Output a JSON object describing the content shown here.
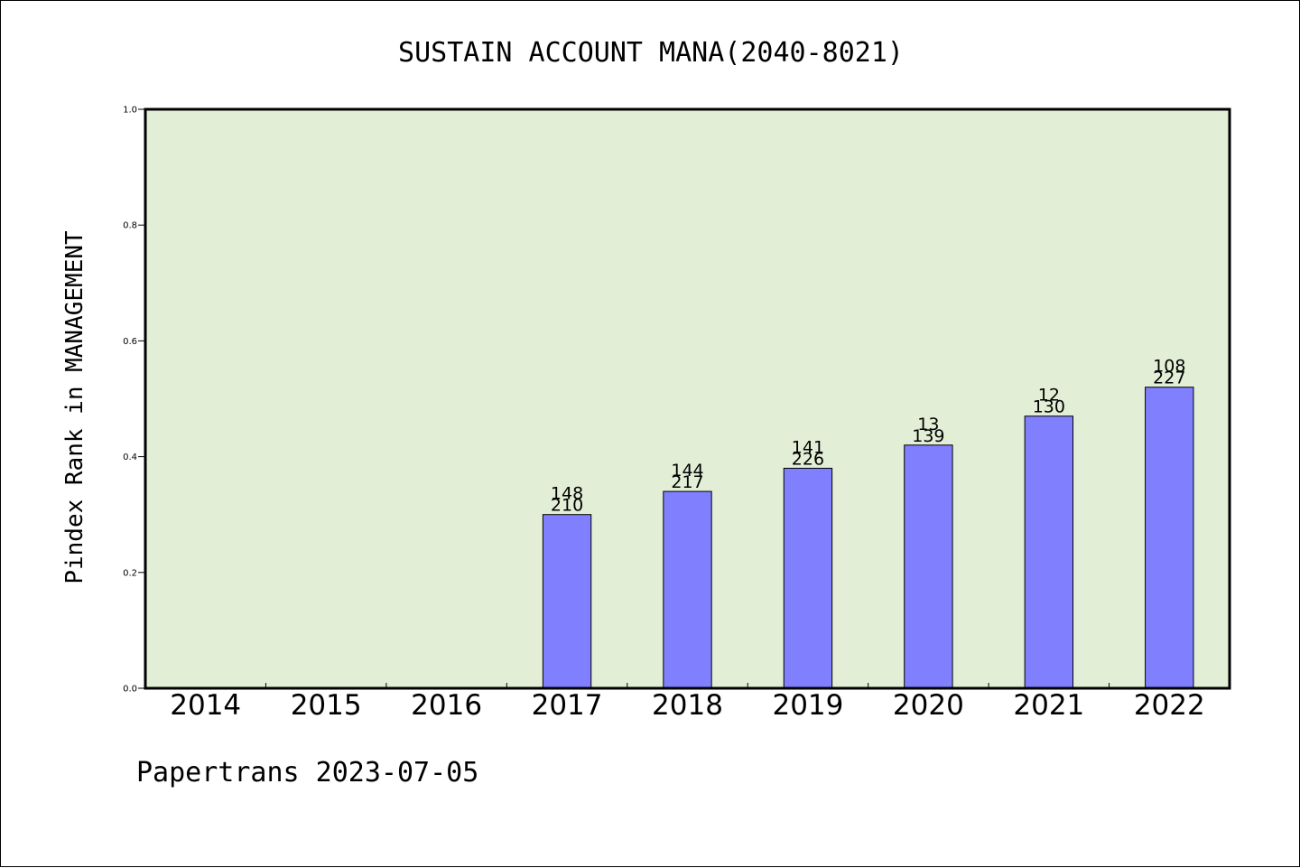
{
  "chart_data": {
    "type": "bar",
    "title": "SUSTAIN ACCOUNT MANA(2040-8021)",
    "ylabel": "Pindex Rank in MANAGEMENT",
    "xlabel": "",
    "categories": [
      "2014",
      "2015",
      "2016",
      "2017",
      "2018",
      "2019",
      "2020",
      "2021",
      "2022"
    ],
    "values": [
      null,
      null,
      null,
      0.3,
      0.34,
      0.38,
      0.42,
      0.47,
      0.52
    ],
    "bar_labels": [
      null,
      null,
      null,
      [
        "148",
        "210"
      ],
      [
        "144",
        "217"
      ],
      [
        "141",
        "226"
      ],
      [
        "13",
        "139"
      ],
      [
        "12",
        "130"
      ],
      [
        "108",
        "227"
      ]
    ],
    "ylim": [
      0.0,
      1.0
    ],
    "yticks": [
      "0.0",
      "0.2",
      "0.4",
      "0.6",
      "0.8",
      "1.0"
    ],
    "grid": false,
    "colors": {
      "plot_background": "#e2efd6",
      "bar_fill": "#8080ff",
      "bar_edge": "#000000",
      "axes_edge": "#000000"
    }
  },
  "footer": {
    "text": "Papertrans 2023-07-05"
  }
}
